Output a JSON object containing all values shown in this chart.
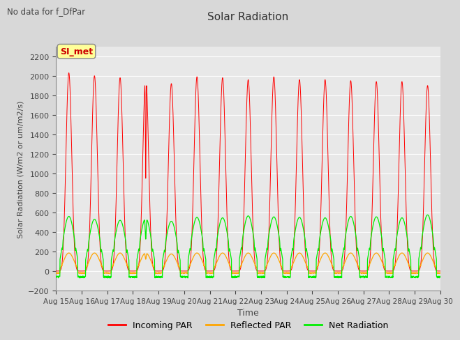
{
  "title": "Solar Radiation",
  "subtitle": "No data for f_DfPar",
  "ylabel": "Solar Radiation (W/m2 or um/m2/s)",
  "xlabel": "Time",
  "legend_label": "SI_met",
  "ylim": [
    -200,
    2300
  ],
  "yticks": [
    -200,
    0,
    200,
    400,
    600,
    800,
    1000,
    1200,
    1400,
    1600,
    1800,
    2000,
    2200
  ],
  "x_tick_labels": [
    "Aug 15",
    "Aug 16",
    "Aug 17",
    "Aug 18",
    "Aug 19",
    "Aug 20",
    "Aug 21",
    "Aug 22",
    "Aug 23",
    "Aug 24",
    "Aug 25",
    "Aug 26",
    "Aug 27",
    "Aug 28",
    "Aug 29",
    "Aug 30"
  ],
  "num_days": 15,
  "incoming_color": "#ff0000",
  "reflected_color": "#ffa500",
  "net_color": "#00ee00",
  "background_color": "#d8d8d8",
  "plot_bg_color": "#e8e8e8",
  "grid_color": "#ffffff",
  "si_met_bg": "#ffff99",
  "si_met_fg": "#cc0000",
  "si_met_border": "#888888"
}
